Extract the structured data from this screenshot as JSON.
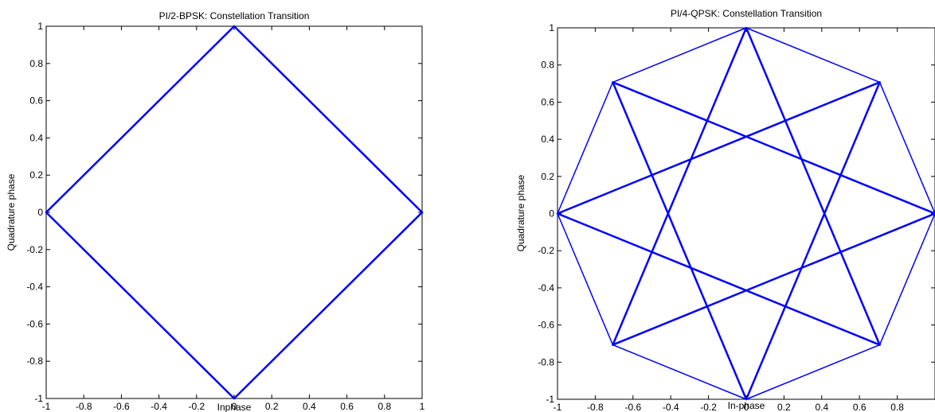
{
  "chart_data": [
    {
      "type": "line",
      "title": "PI/2-BPSK: Constellation Transition",
      "xlabel": "Inphase",
      "ylabel": "Quadrature phase",
      "xlim": [
        -1,
        1
      ],
      "ylim": [
        -1,
        1
      ],
      "xticks": [
        -1,
        -0.8,
        -0.6,
        -0.4,
        -0.2,
        0,
        0.2,
        0.4,
        0.6,
        0.8,
        1
      ],
      "xtick_labels": [
        "-1",
        "-0.8",
        "-0.6",
        "-0.4",
        "-0.2",
        "0",
        "0.2",
        "0.4",
        "0.6",
        "0.8",
        "1"
      ],
      "yticks": [
        -1,
        -0.8,
        -0.6,
        -0.4,
        -0.2,
        0,
        0.2,
        0.4,
        0.6,
        0.8,
        1
      ],
      "ytick_labels": [
        "-1",
        "-0.8",
        "-0.6",
        "-0.4",
        "-0.2",
        "0",
        "0.2",
        "0.4",
        "0.6",
        "0.8",
        "1"
      ],
      "grid": false,
      "line_color": "#0000ff",
      "segments": [
        {
          "x": [
            -1,
            0
          ],
          "y": [
            0,
            1
          ]
        },
        {
          "x": [
            0,
            1
          ],
          "y": [
            1,
            0
          ]
        },
        {
          "x": [
            1,
            0
          ],
          "y": [
            0,
            -1
          ]
        },
        {
          "x": [
            0,
            -1
          ],
          "y": [
            -1,
            0
          ]
        }
      ]
    },
    {
      "type": "line",
      "title": "PI/4-QPSK: Constellation Transition",
      "xlabel": "In-phase",
      "ylabel": "Quadrature phase",
      "xlim": [
        -1,
        1
      ],
      "ylim": [
        -1,
        1
      ],
      "xticks": [
        -1,
        -0.8,
        -0.6,
        -0.4,
        -0.2,
        0,
        0.2,
        0.4,
        0.6,
        0.8
      ],
      "xtick_labels": [
        "-1",
        "-0.8",
        "-0.6",
        "-0.4",
        "-0.2",
        "0",
        "0.2",
        "0.4",
        "0.6",
        "0.8"
      ],
      "yticks": [
        -1,
        -0.8,
        -0.6,
        -0.4,
        -0.2,
        0,
        0.2,
        0.4,
        0.6,
        0.8,
        1
      ],
      "ytick_labels": [
        "-1",
        "-0.8",
        "-0.6",
        "-0.4",
        "-0.2",
        "0",
        "0.2",
        "0.4",
        "0.6",
        "0.8",
        "1"
      ],
      "grid": false,
      "line_color": "#0000ff",
      "points": [
        [
          1,
          0
        ],
        [
          0.707,
          0.707
        ],
        [
          0,
          1
        ],
        [
          -0.707,
          0.707
        ],
        [
          -1,
          0
        ],
        [
          -0.707,
          -0.707
        ],
        [
          0,
          -1
        ],
        [
          0.707,
          -0.707
        ]
      ],
      "connections": "all point pairs whose index offset is 1 or 3 (octagon edges and star chords)"
    }
  ]
}
